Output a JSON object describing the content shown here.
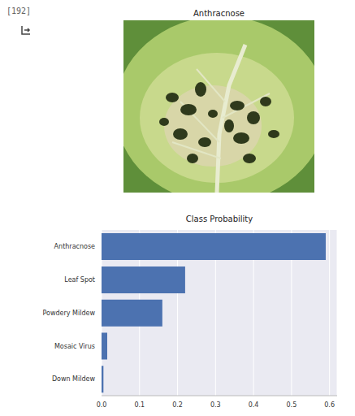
{
  "cell_label": "[192]",
  "image_title": "Anthracnose",
  "chart_data": {
    "type": "bar",
    "title": "Class Probability",
    "orientation": "horizontal",
    "categories": [
      "Anthracnose",
      "Leaf Spot",
      "Powdery Mildew",
      "Mosaic Virus",
      "Down Mildew"
    ],
    "values": [
      0.59,
      0.22,
      0.16,
      0.015,
      0.005
    ],
    "color": "#4c72b0",
    "xlim": [
      0,
      0.62
    ],
    "xticks": [
      {
        "value": 0,
        "label": "0.0"
      },
      0.1,
      0.2,
      0.3,
      0.4,
      0.5,
      0.6
    ],
    "grid": true
  }
}
